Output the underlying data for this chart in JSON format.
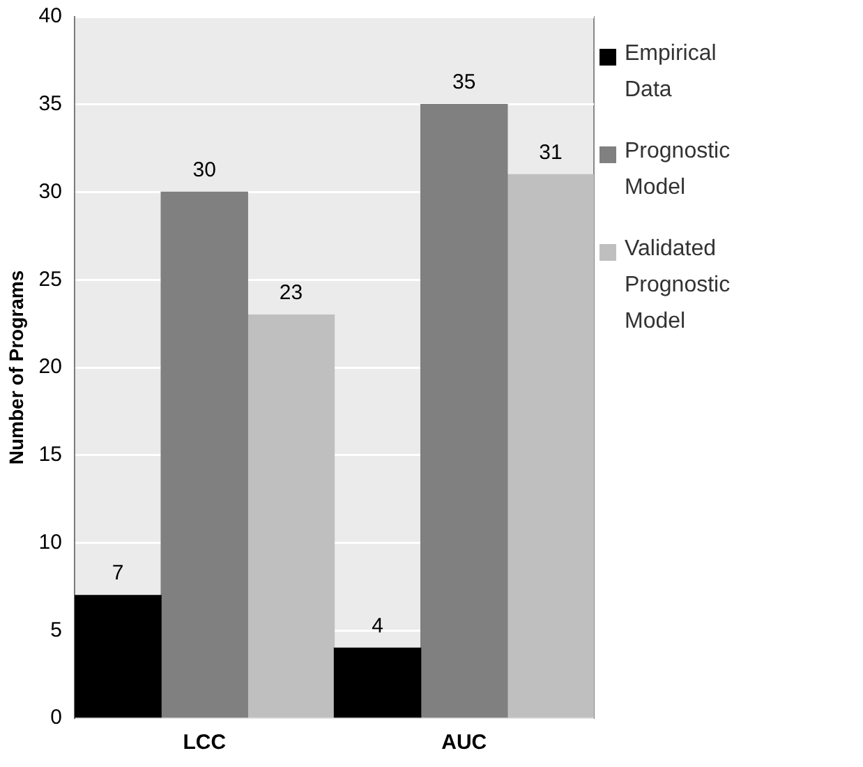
{
  "chart_data": {
    "type": "bar",
    "ylabel": "Number of Programs",
    "categories": [
      "LCC",
      "AUC"
    ],
    "series": [
      {
        "name": "Empirical Data",
        "color": "#000000",
        "values": [
          7,
          4
        ]
      },
      {
        "name": "Prognostic Model",
        "color": "#808080",
        "values": [
          30,
          35
        ]
      },
      {
        "name": "Validated Prognostic Model",
        "color": "#bfbfbf",
        "values": [
          23,
          31
        ]
      }
    ],
    "ylim": [
      0,
      40
    ],
    "yticks": [
      0,
      5,
      10,
      15,
      20,
      25,
      30,
      35,
      40
    ],
    "grid": "y",
    "legend": "right",
    "data_labels": true
  }
}
